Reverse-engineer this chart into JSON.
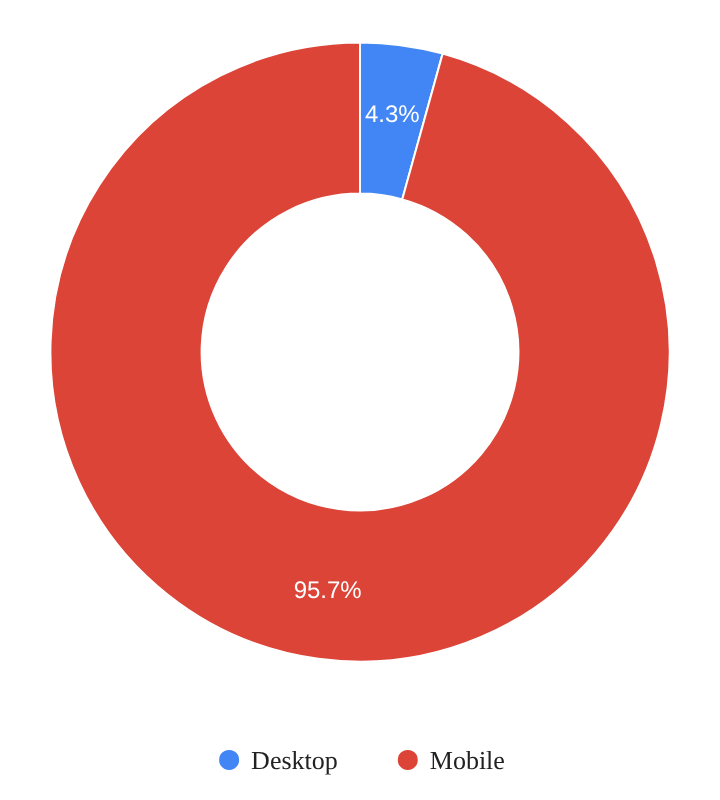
{
  "chart_data": {
    "type": "donut",
    "categories": [
      "Desktop",
      "Mobile"
    ],
    "values": [
      4.3,
      95.7
    ],
    "colors": [
      "#4285f4",
      "#db4437"
    ],
    "value_labels": [
      "4.3%",
      "95.7%"
    ],
    "legend": "bottom"
  }
}
